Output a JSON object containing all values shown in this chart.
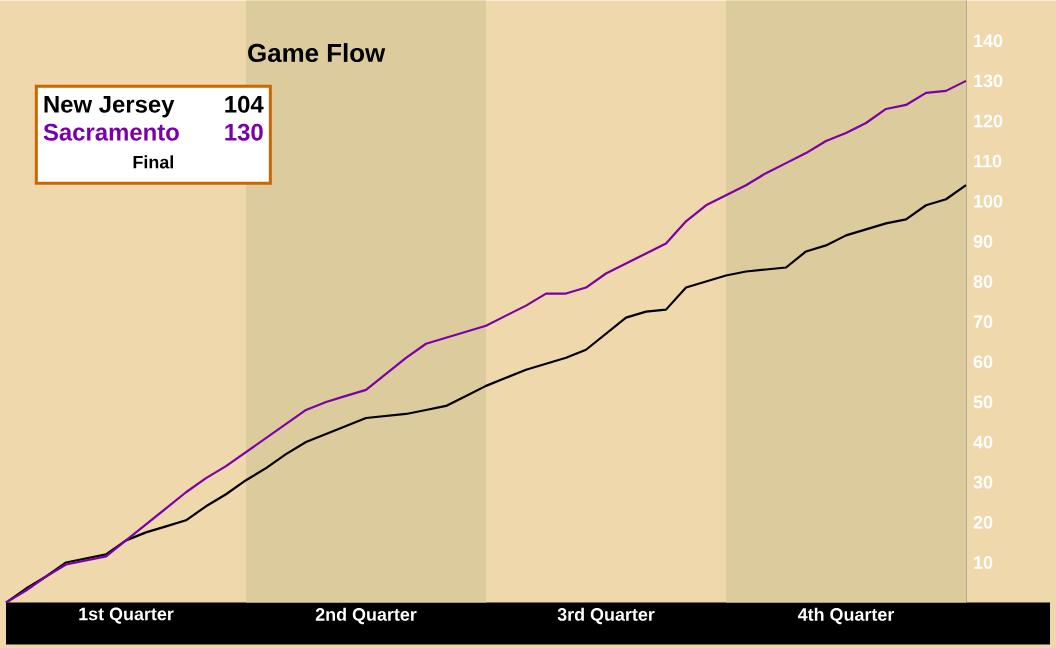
{
  "chart_data": {
    "type": "line",
    "title": "Game Flow",
    "categories": [
      null,
      null,
      null,
      null,
      null,
      null,
      "1st Quarter",
      null,
      null,
      null,
      null,
      null,
      null,
      null,
      null,
      null,
      null,
      null,
      "2nd Quarter",
      null,
      null,
      null,
      null,
      null,
      null,
      null,
      null,
      null,
      null,
      null,
      "3rd Quarter",
      null,
      null,
      null,
      null,
      null,
      null,
      null,
      null,
      null,
      null,
      null,
      "4th Quarter",
      null,
      null,
      null,
      null,
      null,
      null
    ],
    "ylim": [
      0,
      150
    ],
    "yticks": [
      10,
      20,
      30,
      40,
      50,
      60,
      70,
      80,
      90,
      100,
      110,
      120,
      130,
      140
    ],
    "series": [
      {
        "name": "New Jersey",
        "color": "#000000",
        "values": [
          0,
          3.5,
          6.5,
          10,
          11,
          12,
          15.5,
          17.5,
          19,
          20.5,
          24,
          27,
          30.5,
          33.5,
          37,
          40,
          42,
          44,
          46,
          46.5,
          47,
          48,
          49,
          51.5,
          54,
          56,
          58,
          59.5,
          61,
          63,
          67,
          71,
          72.5,
          73,
          78.5,
          80,
          81.5,
          82.5,
          83,
          83.5,
          87.5,
          89,
          91.5,
          93,
          94.5,
          95.5,
          99,
          100.5,
          104
        ]
      },
      {
        "name": "Sacramento",
        "color": "#7b00a8",
        "values": [
          0,
          3,
          6.5,
          9.5,
          10.5,
          11.5,
          15.5,
          19.5,
          23.5,
          27.5,
          31,
          34,
          37.5,
          41,
          44.5,
          48,
          50,
          51.5,
          53,
          57,
          61,
          64.5,
          66,
          67.5,
          69,
          71.5,
          74,
          77,
          77,
          78.5,
          82,
          84.5,
          87,
          89.5,
          95,
          99,
          101.5,
          104,
          107,
          109.5,
          112,
          115,
          117,
          119.5,
          123,
          124,
          127,
          127.5,
          130
        ]
      }
    ],
    "legend": "top left",
    "grid": false,
    "annotations": [
      "104",
      "130",
      "Final"
    ]
  }
}
